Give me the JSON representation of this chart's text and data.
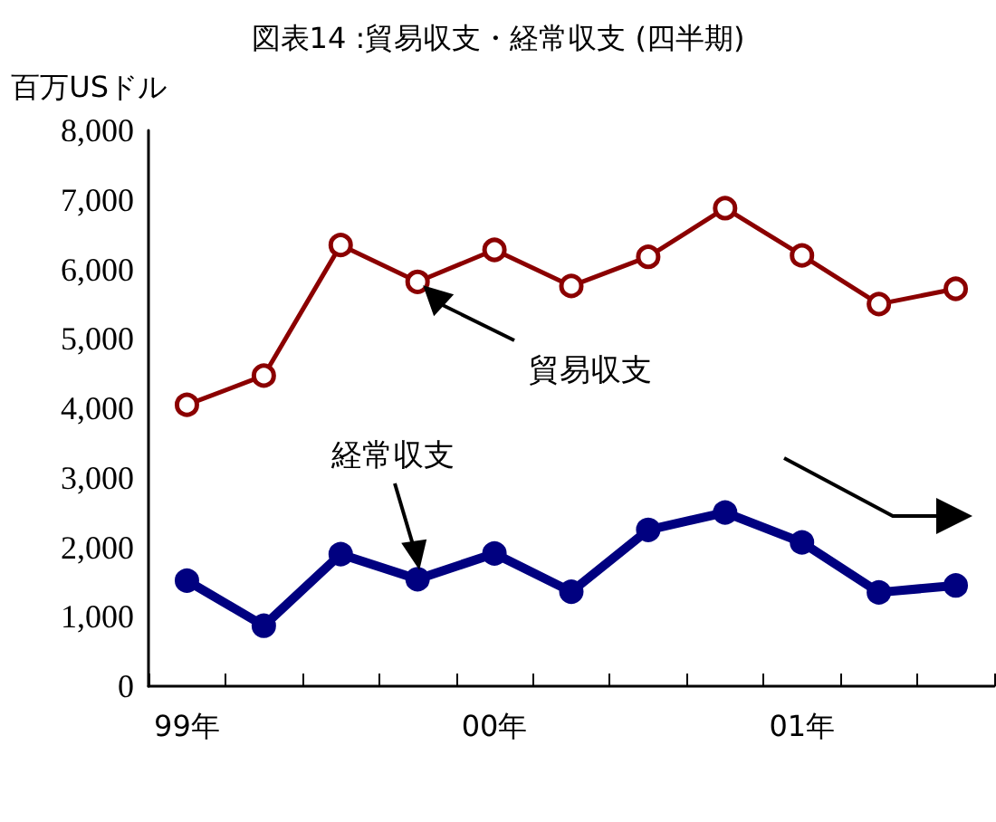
{
  "chart_data": {
    "type": "line",
    "title": "図表14 :貿易収支・経常収支 (四半期)",
    "ylabel": "百万USドル",
    "categories": [
      "99年",
      null,
      null,
      null,
      "00年",
      null,
      null,
      null,
      "01年",
      null,
      null
    ],
    "series": [
      {
        "name": "貿易収支",
        "color": "#8b0000",
        "values": [
          4050,
          4470,
          6350,
          5820,
          6280,
          5760,
          6180,
          6880,
          6200,
          5500,
          5720
        ]
      },
      {
        "name": "経常収支",
        "color": "#000080",
        "values": [
          1520,
          870,
          1900,
          1540,
          1910,
          1360,
          2250,
          2500,
          2070,
          1350,
          1450
        ]
      }
    ],
    "ylim": [
      0,
      8000
    ],
    "yticks": [
      0,
      {
        "value": 1000,
        "label": "1,000"
      },
      {
        "value": 2000,
        "label": "2,000"
      },
      {
        "value": 3000,
        "label": "3,000"
      },
      {
        "value": 4000,
        "label": "4,000"
      },
      {
        "value": 5000,
        "label": "5,000"
      },
      {
        "value": 6000,
        "label": "6,000"
      },
      {
        "value": 7000,
        "label": "7,000"
      },
      {
        "value": 8000,
        "label": "8,000"
      }
    ],
    "grid": false,
    "legend": false,
    "marker": "circle"
  }
}
